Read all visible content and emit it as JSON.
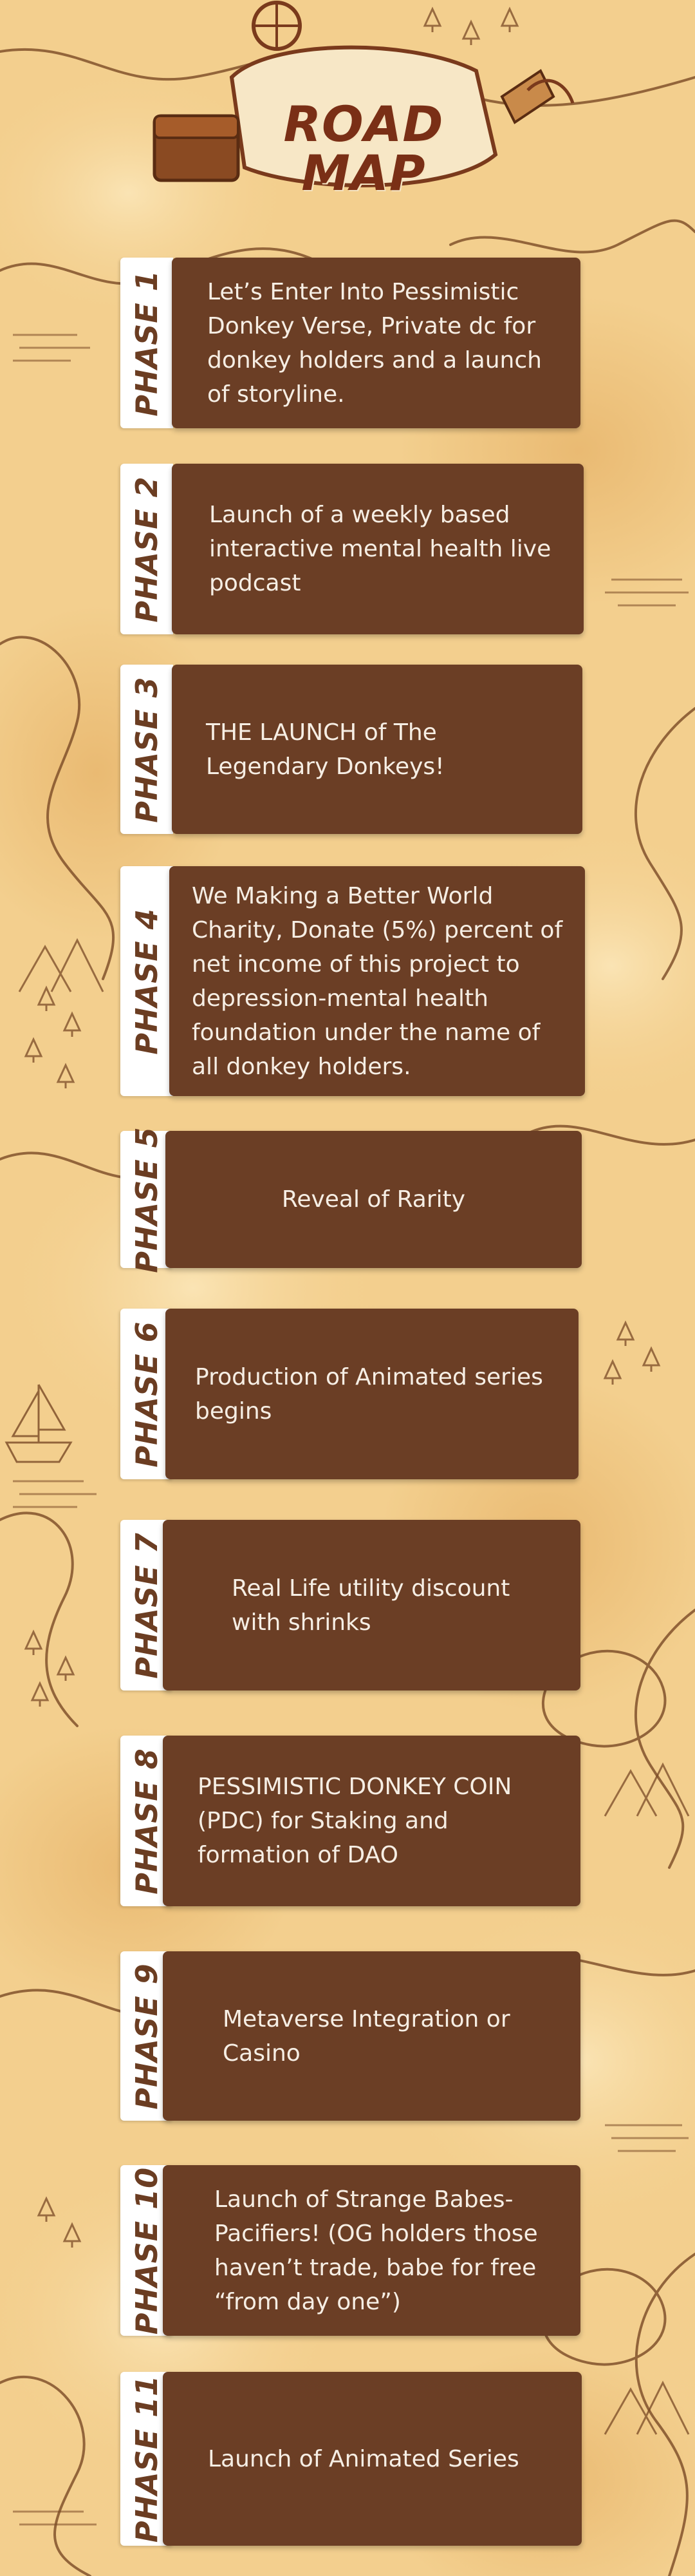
{
  "title": {
    "line1": "ROAD",
    "line2": "MAP"
  },
  "phases": [
    {
      "label": "PHASE 1",
      "text": "Let’s Enter  Into Pessimistic Donkey Verse, Private dc for donkey holders and a launch of storyline."
    },
    {
      "label": "PHASE 2",
      "text": "Launch of a weekly based interactive mental health live podcast"
    },
    {
      "label": "PHASE 3",
      "text": "THE LAUNCH of  The Legendary Donkeys!"
    },
    {
      "label": "PHASE 4",
      "text": "We Making a Better World Charity, Donate (5%) percent of net income of this project to depression-mental health foundation under the name of all donkey holders."
    },
    {
      "label": "PHASE 5",
      "text": "Reveal of Rarity"
    },
    {
      "label": "PHASE 6",
      "text": "Production of Animated series begins"
    },
    {
      "label": "PHASE 7",
      "text": "Real Life utility discount with shrinks"
    },
    {
      "label": "PHASE 8",
      "text": "PESSIMISTIC DONKEY COIN (PDC) for Staking and formation of DAO"
    },
    {
      "label": "PHASE 9",
      "text": "Metaverse Integration or Casino"
    },
    {
      "label": "PHASE 10",
      "text": "Launch of Strange Babes-Pacifiers! (OG holders those haven’t trade, babe for free “from day one”)"
    },
    {
      "label": "PHASE 11",
      "text": "Launch of Animated Series"
    }
  ],
  "colors": {
    "card": "#6b3e25",
    "card_text": "#f6eee4",
    "tab": "#ffffff",
    "tab_text": "#6b3d22",
    "title": "#7a2f16",
    "parchment": "#f3cf8e",
    "map_line": "#7a4a26"
  }
}
